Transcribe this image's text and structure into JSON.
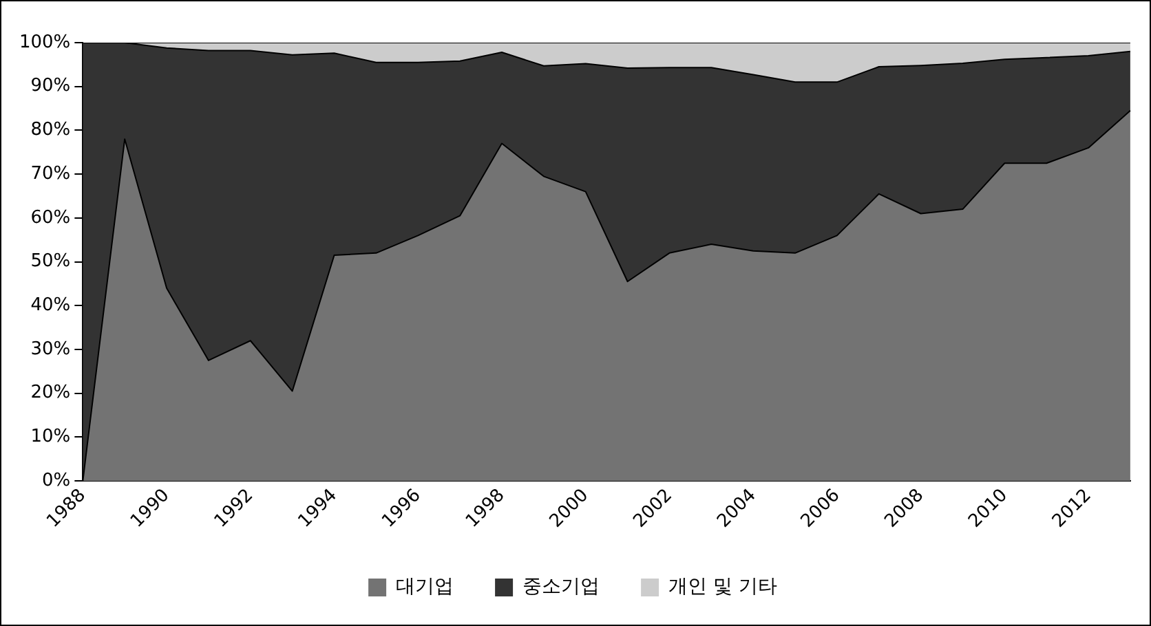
{
  "chart_data": {
    "type": "area",
    "stacked": true,
    "categories": [
      "1988",
      null,
      "1990",
      null,
      "1992",
      null,
      "1994",
      null,
      "1996",
      null,
      "1998",
      null,
      "2000",
      null,
      "2002",
      null,
      "2004",
      null,
      "2006",
      null,
      "2008",
      null,
      "2010",
      null,
      "2012",
      null
    ],
    "series": [
      {
        "name": "대기업",
        "color": "#737373",
        "values": [
          0,
          78,
          44,
          27.5,
          32,
          20.5,
          51.5,
          52,
          56,
          60.5,
          77,
          69.5,
          66,
          45.5,
          52,
          54,
          52.5,
          52,
          56,
          65.5,
          61,
          62,
          72.5,
          72.5,
          76,
          84.5
        ]
      },
      {
        "name": "중소기업",
        "color": "#333333",
        "values": [
          100,
          22,
          54.8,
          70.7,
          66.2,
          76.7,
          46.1,
          43.5,
          39.5,
          35.3,
          20.8,
          25.2,
          29.2,
          48.7,
          42.3,
          40.3,
          40.2,
          39,
          35,
          29,
          33.8,
          33.3,
          23.7,
          24.1,
          21,
          13.5
        ]
      },
      {
        "name": "개인 및 기타",
        "color": "#cccccc",
        "values": [
          0,
          0,
          1.2,
          1.8,
          1.8,
          2.8,
          2.4,
          4.5,
          4.5,
          4.2,
          2.2,
          5.3,
          4.8,
          5.8,
          5.7,
          5.7,
          7.3,
          9,
          9,
          5.5,
          5.2,
          4.7,
          3.8,
          3.4,
          3,
          2
        ]
      }
    ],
    "ylim": [
      0,
      100
    ],
    "yticks": [
      {
        "value": 0,
        "label": "0%"
      },
      {
        "value": 10,
        "label": "10%"
      },
      {
        "value": 20,
        "label": "20%"
      },
      {
        "value": 30,
        "label": "30%"
      },
      {
        "value": 40,
        "label": "40%"
      },
      {
        "value": 50,
        "label": "50%"
      },
      {
        "value": 60,
        "label": "60%"
      },
      {
        "value": 70,
        "label": "70%"
      },
      {
        "value": 80,
        "label": "80%"
      },
      {
        "value": 90,
        "label": "90%"
      },
      {
        "value": 100,
        "label": "100%"
      }
    ],
    "grid": false,
    "legend": "bottom",
    "marker": "none",
    "line_style": "solid"
  }
}
